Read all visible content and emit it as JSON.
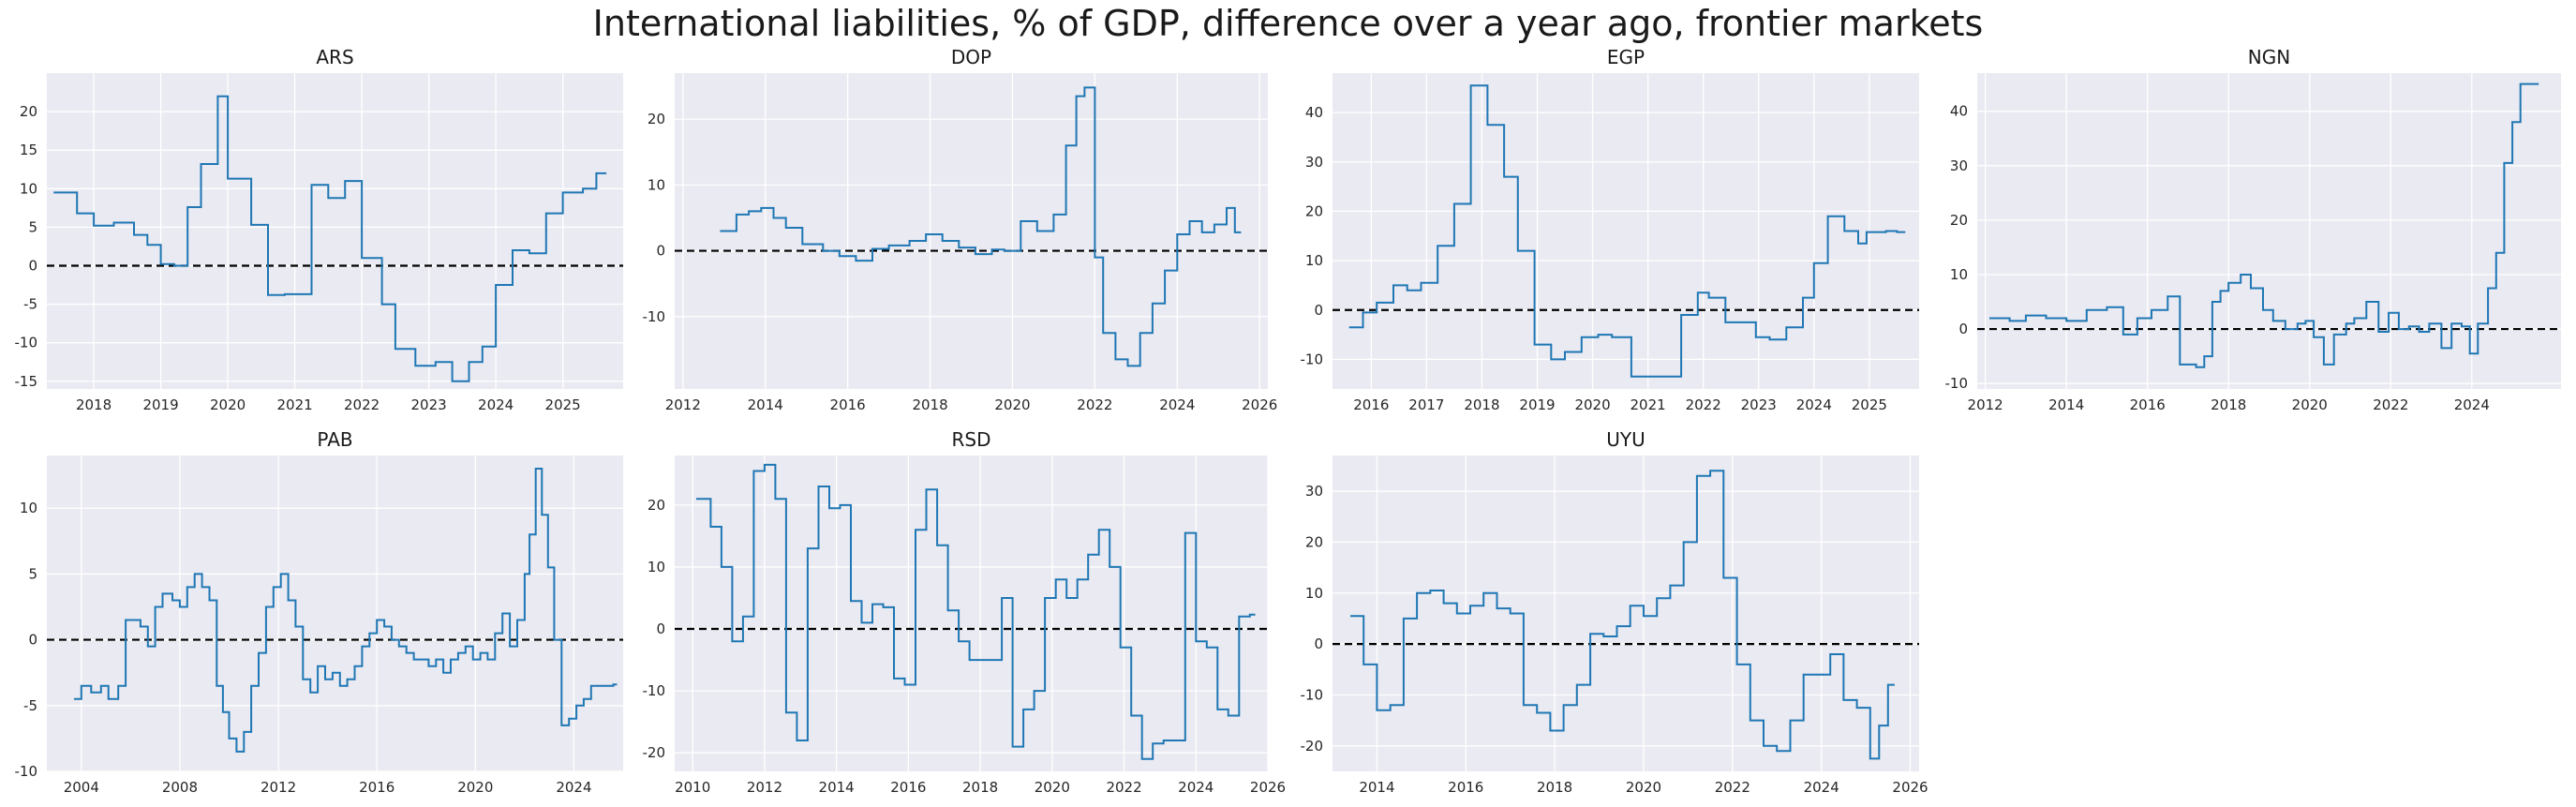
{
  "figure": {
    "title": "International liabilities, % of GDP, difference over a year ago, frontier markets"
  },
  "colors": {
    "line": "#1f77b4",
    "panel_bg": "#eaeaf2",
    "grid": "#ffffff",
    "zero_line": "#000000"
  },
  "chart_data": [
    {
      "type": "line",
      "style": "step",
      "title": "ARS",
      "xlim": [
        2017.3,
        2025.9
      ],
      "ylim": [
        -16,
        25
      ],
      "xticks": [
        2018,
        2019,
        2020,
        2021,
        2022,
        2023,
        2024,
        2025
      ],
      "yticks": [
        -15,
        -10,
        -5,
        0,
        5,
        10,
        15,
        20
      ],
      "hline": 0,
      "x": [
        2017.4,
        2017.75,
        2018.0,
        2018.3,
        2018.6,
        2018.8,
        2019.0,
        2019.2,
        2019.4,
        2019.6,
        2019.85,
        2020.0,
        2020.35,
        2020.6,
        2020.85,
        2021.25,
        2021.5,
        2021.75,
        2022.0,
        2022.3,
        2022.5,
        2022.8,
        2023.1,
        2023.35,
        2023.6,
        2023.8,
        2024.0,
        2024.25,
        2024.5,
        2024.75,
        2025.0,
        2025.3,
        2025.5
      ],
      "y": [
        9.5,
        6.8,
        5.2,
        5.6,
        4.0,
        2.7,
        0.2,
        0.0,
        7.6,
        13.2,
        22.0,
        11.3,
        5.3,
        -3.8,
        -3.7,
        10.5,
        8.8,
        11.0,
        1.0,
        -5.0,
        -10.8,
        -13.0,
        -12.5,
        -15.0,
        -12.5,
        -10.5,
        -2.5,
        2.0,
        1.6,
        6.8,
        9.5,
        10.0,
        12.0
      ]
    },
    {
      "type": "line",
      "style": "step",
      "title": "DOP",
      "xlim": [
        2011.8,
        2026.2
      ],
      "ylim": [
        -21,
        27
      ],
      "xticks": [
        2012,
        2014,
        2016,
        2018,
        2020,
        2022,
        2024,
        2026
      ],
      "yticks": [
        -10,
        0,
        10,
        20
      ],
      "hline": 0,
      "x": [
        2012.9,
        2013.3,
        2013.6,
        2013.9,
        2014.2,
        2014.5,
        2014.9,
        2015.4,
        2015.8,
        2016.2,
        2016.6,
        2017.0,
        2017.5,
        2017.9,
        2018.3,
        2018.7,
        2019.1,
        2019.5,
        2019.8,
        2020.2,
        2020.6,
        2021.0,
        2021.3,
        2021.55,
        2021.75,
        2022.0,
        2022.2,
        2022.5,
        2022.8,
        2023.1,
        2023.4,
        2023.7,
        2024.0,
        2024.3,
        2024.6,
        2024.9,
        2025.2,
        2025.4
      ],
      "y": [
        3.0,
        5.5,
        6.0,
        6.5,
        5.0,
        3.5,
        1.0,
        0.0,
        -0.8,
        -1.5,
        0.3,
        0.8,
        1.5,
        2.5,
        1.5,
        0.5,
        -0.5,
        0.2,
        0.0,
        4.5,
        3.0,
        5.5,
        16.0,
        23.5,
        24.8,
        -1.0,
        -12.5,
        -16.5,
        -17.5,
        -12.5,
        -8.0,
        -3.0,
        2.5,
        4.5,
        2.8,
        4.0,
        6.5,
        2.8
      ]
    },
    {
      "type": "line",
      "style": "step",
      "title": "EGP",
      "xlim": [
        2015.3,
        2025.9
      ],
      "ylim": [
        -16,
        48
      ],
      "xticks": [
        2016,
        2017,
        2018,
        2019,
        2020,
        2021,
        2022,
        2023,
        2024,
        2025
      ],
      "yticks": [
        -10,
        0,
        10,
        20,
        30,
        40
      ],
      "hline": 0,
      "x": [
        2015.6,
        2015.85,
        2016.1,
        2016.4,
        2016.65,
        2016.9,
        2017.2,
        2017.5,
        2017.8,
        2018.1,
        2018.4,
        2018.65,
        2018.95,
        2019.25,
        2019.5,
        2019.8,
        2020.1,
        2020.35,
        2020.7,
        2021.0,
        2021.3,
        2021.6,
        2021.9,
        2022.1,
        2022.4,
        2022.7,
        2022.95,
        2023.2,
        2023.5,
        2023.8,
        2024.0,
        2024.25,
        2024.55,
        2024.8,
        2024.95,
        2025.3,
        2025.5
      ],
      "y": [
        -3.5,
        -0.5,
        1.5,
        5.0,
        4.0,
        5.5,
        13.0,
        21.5,
        45.5,
        37.5,
        27.0,
        12.0,
        -7.0,
        -10.0,
        -8.5,
        -5.5,
        -5.0,
        -5.5,
        -13.5,
        -13.5,
        -13.5,
        -1.0,
        3.5,
        2.5,
        -2.5,
        -2.5,
        -5.5,
        -6.0,
        -3.5,
        2.5,
        9.5,
        19.0,
        16.0,
        13.5,
        15.8,
        16.0,
        15.8
      ]
    },
    {
      "type": "line",
      "style": "step",
      "title": "NGN",
      "xlim": [
        2011.8,
        2026.2
      ],
      "ylim": [
        -11,
        47
      ],
      "xticks": [
        2012,
        2014,
        2016,
        2018,
        2020,
        2022,
        2024
      ],
      "yticks": [
        -10,
        0,
        10,
        20,
        30,
        40
      ],
      "hline": 0,
      "x": [
        2012.1,
        2012.6,
        2013.0,
        2013.5,
        2014.0,
        2014.5,
        2015.0,
        2015.4,
        2015.75,
        2016.1,
        2016.5,
        2016.8,
        2017.2,
        2017.4,
        2017.6,
        2017.8,
        2018.0,
        2018.3,
        2018.55,
        2018.85,
        2019.1,
        2019.4,
        2019.7,
        2019.9,
        2020.1,
        2020.35,
        2020.6,
        2020.9,
        2021.1,
        2021.4,
        2021.7,
        2021.95,
        2022.2,
        2022.45,
        2022.7,
        2022.95,
        2023.25,
        2023.5,
        2023.75,
        2023.95,
        2024.15,
        2024.4,
        2024.6,
        2024.8,
        2025.0,
        2025.2,
        2025.5
      ],
      "y": [
        2.0,
        1.5,
        2.5,
        2.0,
        1.5,
        3.5,
        4.0,
        -1.0,
        2.0,
        3.5,
        6.0,
        -6.5,
        -7.0,
        -5.0,
        5.0,
        7.0,
        8.5,
        10.0,
        7.5,
        3.5,
        1.5,
        0.0,
        1.0,
        1.5,
        -1.5,
        -6.5,
        -1.0,
        1.0,
        2.0,
        5.0,
        -0.5,
        3.0,
        0.0,
        0.5,
        -0.5,
        1.0,
        -3.5,
        1.0,
        0.5,
        -4.5,
        1.0,
        7.5,
        14.0,
        30.5,
        38.0,
        45.0,
        45.0
      ]
    },
    {
      "type": "line",
      "style": "step",
      "title": "PAB",
      "xlim": [
        2002.6,
        2026.0
      ],
      "ylim": [
        -10,
        14
      ],
      "xticks": [
        2004,
        2008,
        2012,
        2016,
        2020,
        2024
      ],
      "yticks": [
        -10,
        -5,
        0,
        5,
        10
      ],
      "hline": 0,
      "x": [
        2003.7,
        2004.0,
        2004.4,
        2004.8,
        2005.1,
        2005.5,
        2005.8,
        2006.1,
        2006.4,
        2006.7,
        2007.0,
        2007.3,
        2007.7,
        2008.0,
        2008.3,
        2008.6,
        2008.9,
        2009.2,
        2009.5,
        2009.75,
        2010.0,
        2010.3,
        2010.6,
        2010.9,
        2011.2,
        2011.5,
        2011.8,
        2012.1,
        2012.4,
        2012.7,
        2013.0,
        2013.3,
        2013.6,
        2013.9,
        2014.2,
        2014.5,
        2014.8,
        2015.1,
        2015.4,
        2015.7,
        2016.0,
        2016.3,
        2016.6,
        2016.9,
        2017.2,
        2017.5,
        2017.8,
        2018.1,
        2018.4,
        2018.7,
        2019.0,
        2019.3,
        2019.6,
        2019.9,
        2020.2,
        2020.5,
        2020.8,
        2021.1,
        2021.4,
        2021.7,
        2022.0,
        2022.2,
        2022.45,
        2022.7,
        2022.95,
        2023.2,
        2023.5,
        2023.8,
        2024.1,
        2024.4,
        2024.7,
        2025.0,
        2025.3,
        2025.6
      ],
      "y": [
        -4.5,
        -3.5,
        -4.0,
        -3.5,
        -4.5,
        -3.5,
        1.5,
        1.5,
        1.0,
        -0.5,
        2.5,
        3.5,
        3.0,
        2.5,
        4.0,
        5.0,
        4.0,
        3.0,
        -3.5,
        -5.5,
        -7.5,
        -8.5,
        -7.0,
        -3.5,
        -1.0,
        2.5,
        4.0,
        5.0,
        3.0,
        1.0,
        -3.0,
        -4.0,
        -2.0,
        -3.0,
        -2.5,
        -3.5,
        -3.0,
        -2.0,
        -0.5,
        0.5,
        1.5,
        1.0,
        0.0,
        -0.5,
        -1.0,
        -1.5,
        -1.5,
        -2.0,
        -1.5,
        -2.5,
        -1.5,
        -1.0,
        -0.5,
        -1.5,
        -1.0,
        -1.5,
        0.5,
        2.0,
        -0.5,
        1.5,
        5.0,
        8.0,
        13.0,
        9.5,
        5.5,
        0.0,
        -6.5,
        -6.0,
        -5.0,
        -4.5,
        -3.5,
        -3.5,
        -3.5,
        -3.4
      ]
    },
    {
      "type": "line",
      "style": "step",
      "title": "RSD",
      "xlim": [
        2009.5,
        2026.0
      ],
      "ylim": [
        -23,
        28
      ],
      "xticks": [
        2010,
        2012,
        2014,
        2016,
        2018,
        2020,
        2022,
        2024,
        2026
      ],
      "yticks": [
        -20,
        -10,
        0,
        10,
        20
      ],
      "hline": 0,
      "x": [
        2010.1,
        2010.5,
        2010.8,
        2011.1,
        2011.4,
        2011.7,
        2012.0,
        2012.3,
        2012.6,
        2012.9,
        2013.2,
        2013.5,
        2013.8,
        2014.1,
        2014.4,
        2014.7,
        2015.0,
        2015.3,
        2015.6,
        2015.9,
        2016.2,
        2016.5,
        2016.8,
        2017.1,
        2017.4,
        2017.7,
        2018.0,
        2018.3,
        2018.6,
        2018.9,
        2019.2,
        2019.5,
        2019.8,
        2020.1,
        2020.4,
        2020.7,
        2021.0,
        2021.3,
        2021.6,
        2021.9,
        2022.2,
        2022.5,
        2022.8,
        2023.1,
        2023.4,
        2023.7,
        2024.0,
        2024.3,
        2024.6,
        2024.9,
        2025.2,
        2025.5
      ],
      "y": [
        21.0,
        16.5,
        10.0,
        -2.0,
        2.0,
        25.5,
        26.5,
        21.0,
        -13.5,
        -18.0,
        13.0,
        23.0,
        19.5,
        20.0,
        4.5,
        1.0,
        4.0,
        3.5,
        -8.0,
        -9.0,
        16.0,
        22.5,
        13.5,
        3.0,
        -2.0,
        -5.0,
        -5.0,
        -5.0,
        5.0,
        -19.0,
        -13.0,
        -10.0,
        5.0,
        8.0,
        5.0,
        8.0,
        12.0,
        16.0,
        10.0,
        -3.0,
        -14.0,
        -21.0,
        -18.5,
        -18.0,
        -18.0,
        15.5,
        -2.0,
        -3.0,
        -13.0,
        -14.0,
        2.0,
        2.3
      ]
    },
    {
      "type": "line",
      "style": "step",
      "title": "UYU",
      "xlim": [
        2013.0,
        2026.2
      ],
      "ylim": [
        -25,
        37
      ],
      "xticks": [
        2014,
        2016,
        2018,
        2020,
        2022,
        2024,
        2026
      ],
      "yticks": [
        -20,
        -10,
        0,
        10,
        20,
        30
      ],
      "hline": 0,
      "x": [
        2013.4,
        2013.7,
        2014.0,
        2014.3,
        2014.6,
        2014.9,
        2015.2,
        2015.5,
        2015.8,
        2016.1,
        2016.4,
        2016.7,
        2017.0,
        2017.3,
        2017.6,
        2017.9,
        2018.2,
        2018.5,
        2018.8,
        2019.1,
        2019.4,
        2019.7,
        2020.0,
        2020.3,
        2020.6,
        2020.9,
        2021.2,
        2021.5,
        2021.8,
        2022.1,
        2022.4,
        2022.7,
        2023.0,
        2023.3,
        2023.6,
        2023.9,
        2024.2,
        2024.5,
        2024.8,
        2025.1,
        2025.3,
        2025.5
      ],
      "y": [
        5.5,
        -4.0,
        -13.0,
        -12.0,
        5.0,
        10.0,
        10.5,
        8.0,
        6.0,
        7.5,
        10.0,
        7.0,
        6.0,
        -12.0,
        -13.5,
        -17.0,
        -12.0,
        -8.0,
        2.0,
        1.5,
        3.5,
        7.5,
        5.5,
        9.0,
        11.5,
        20.0,
        33.0,
        34.0,
        13.0,
        -4.0,
        -15.0,
        -20.0,
        -21.0,
        -15.0,
        -6.0,
        -6.0,
        -2.0,
        -11.0,
        -12.5,
        -22.5,
        -16.0,
        -8.0
      ]
    }
  ]
}
